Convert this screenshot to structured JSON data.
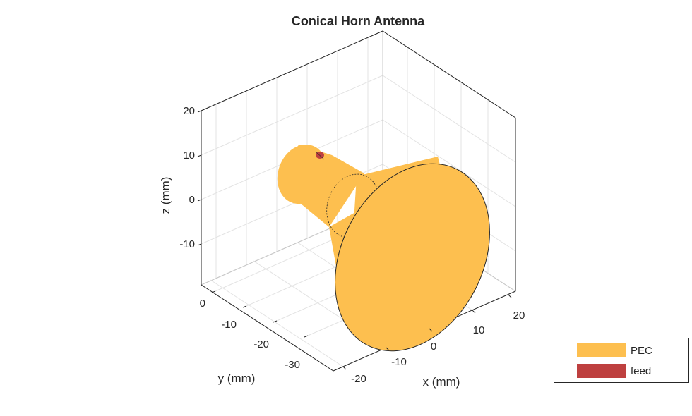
{
  "chart_data": {
    "type": "3d-geometry",
    "title": "Conical Horn Antenna",
    "xlabel": "x (mm)",
    "ylabel": "y (mm)",
    "zlabel": "z (mm)",
    "x_ticks": [
      "-20",
      "-10",
      "0",
      "10",
      "20"
    ],
    "y_ticks": [
      "0",
      "-10",
      "-20",
      "-30"
    ],
    "z_ticks": [
      "20",
      "10",
      "0",
      "-10"
    ],
    "grid": true,
    "legend_position": "bottom-right",
    "legend": [
      {
        "name": "PEC",
        "color": "#FDBF4F"
      },
      {
        "name": "feed",
        "color": "#BE403F"
      }
    ]
  }
}
